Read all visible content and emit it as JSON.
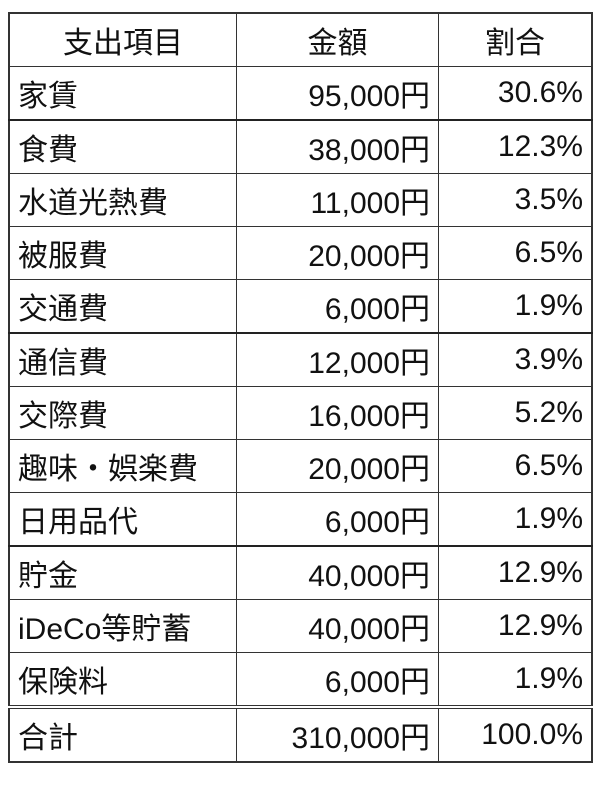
{
  "headers": [
    "支出項目",
    "金額",
    "割合"
  ],
  "rows": [
    {
      "item": "家賃",
      "amount": "95,000円",
      "ratio": "30.6%"
    },
    {
      "item": "食費",
      "amount": "38,000円",
      "ratio": "12.3%"
    },
    {
      "item": "水道光熱費",
      "amount": "11,000円",
      "ratio": "3.5%"
    },
    {
      "item": "被服費",
      "amount": "20,000円",
      "ratio": "6.5%"
    },
    {
      "item": "交通費",
      "amount": "6,000円",
      "ratio": "1.9%"
    },
    {
      "item": "通信費",
      "amount": "12,000円",
      "ratio": "3.9%"
    },
    {
      "item": "交際費",
      "amount": "16,000円",
      "ratio": "5.2%"
    },
    {
      "item": "趣味・娯楽費",
      "amount": "20,000円",
      "ratio": "6.5%"
    },
    {
      "item": "日用品代",
      "amount": "6,000円",
      "ratio": "1.9%"
    },
    {
      "item": "貯金",
      "amount": "40,000円",
      "ratio": "12.9%"
    },
    {
      "item": "iDeCo等貯蓄",
      "amount": "40,000円",
      "ratio": "12.9%"
    },
    {
      "item": "保険料",
      "amount": "6,000円",
      "ratio": "1.9%"
    }
  ],
  "total": {
    "item": "合計",
    "amount": "310,000円",
    "ratio": "100.0%"
  }
}
